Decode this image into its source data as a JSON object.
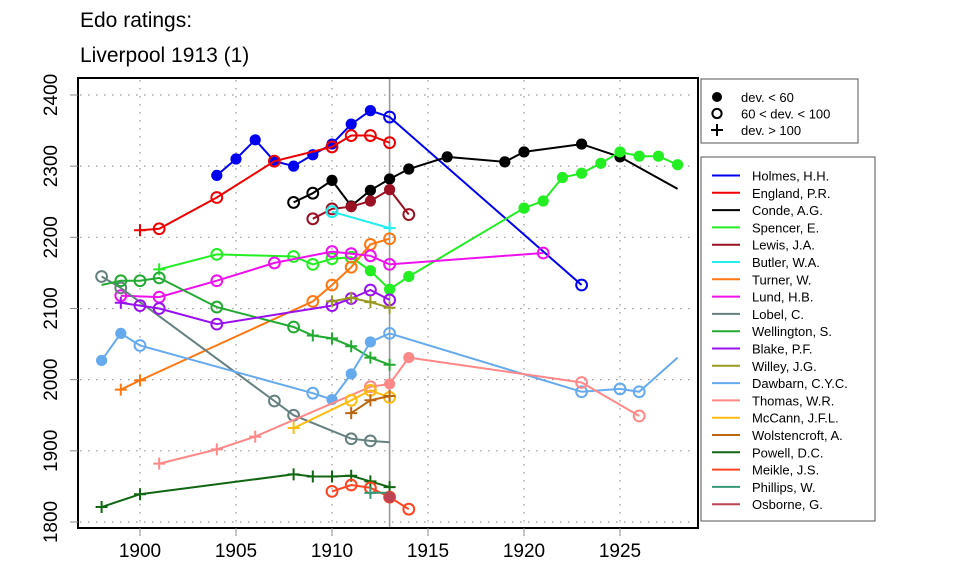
{
  "chart_data": {
    "type": "line",
    "title_line1": "Edo ratings:",
    "title_line2": "Liverpool 1913 (1)",
    "xlabel": "",
    "ylabel": "",
    "xlim": [
      1896.6,
      1929
    ],
    "ylim": [
      1792,
      2420
    ],
    "x_ticks": [
      1900,
      1905,
      1910,
      1915,
      1920,
      1925
    ],
    "x_tick_labels": [
      "1900",
      "1905",
      "1910",
      "1915",
      "1920",
      "1925"
    ],
    "y_ticks": [
      1800,
      1900,
      2000,
      2100,
      2200,
      2300,
      2400
    ],
    "y_tick_labels": [
      "1800",
      "1900",
      "2000",
      "2100",
      "2200",
      "2300",
      "2400"
    ],
    "grid": "dotted",
    "reference_line_x": 1913,
    "marker_legend": {
      "placement": "top-right-outside",
      "entries": [
        {
          "marker": "filled",
          "label": "dev. < 60"
        },
        {
          "marker": "open",
          "label": "60 < dev. < 100"
        },
        {
          "marker": "plus",
          "label": "dev. > 100"
        }
      ]
    },
    "series_legend_placement": "right-outside",
    "series": [
      {
        "name": "Holmes, H.H.",
        "color": "#0000EE",
        "points": [
          [
            1904,
            2287,
            "f"
          ],
          [
            1905,
            2310,
            "f"
          ],
          [
            1906,
            2337,
            "f"
          ],
          [
            1907,
            2307,
            "f"
          ],
          [
            1908,
            2300,
            "f"
          ],
          [
            1909,
            2316,
            "f"
          ],
          [
            1910,
            2331,
            "f"
          ],
          [
            1911,
            2359,
            "f"
          ],
          [
            1912,
            2378,
            "f"
          ],
          [
            1913,
            2369,
            "o"
          ],
          [
            1923,
            2133,
            "o"
          ]
        ]
      },
      {
        "name": "England, P.R.",
        "color": "#EE0000",
        "points": [
          [
            1900,
            2210,
            "p"
          ],
          [
            1901,
            2212,
            "o"
          ],
          [
            1904,
            2256,
            "o"
          ],
          [
            1907,
            2307,
            "o"
          ],
          [
            1910,
            2327,
            "o"
          ],
          [
            1911,
            2343,
            "o"
          ],
          [
            1912,
            2343,
            "o"
          ],
          [
            1913,
            2333,
            "o"
          ]
        ]
      },
      {
        "name": "Conde, A.G.",
        "color": "#000000",
        "points": [
          [
            1908,
            2249,
            "o"
          ],
          [
            1909,
            2262,
            "o"
          ],
          [
            1910,
            2280,
            "f"
          ],
          [
            1911,
            2244,
            "f"
          ],
          [
            1912,
            2266,
            "f"
          ],
          [
            1913,
            2282,
            "f"
          ],
          [
            1914,
            2296,
            "f"
          ],
          [
            1916,
            2313,
            "f"
          ],
          [
            1919,
            2306,
            "f"
          ],
          [
            1920,
            2320,
            "f"
          ],
          [
            1923,
            2331,
            "f"
          ],
          [
            1925,
            2313,
            "f"
          ],
          [
            1928,
            2268,
            "n"
          ]
        ]
      },
      {
        "name": "Spencer, E.",
        "color": "#22EE22",
        "points": [
          [
            1901,
            2155,
            "p"
          ],
          [
            1904,
            2176,
            "o"
          ],
          [
            1908,
            2173,
            "o"
          ],
          [
            1909,
            2162,
            "o"
          ],
          [
            1910,
            2170,
            "o"
          ],
          [
            1911,
            2172,
            "o"
          ],
          [
            1912,
            2153,
            "f"
          ],
          [
            1913,
            2127,
            "f"
          ],
          [
            1914,
            2145,
            "f"
          ],
          [
            1920,
            2241,
            "f"
          ],
          [
            1921,
            2251,
            "f"
          ],
          [
            1922,
            2284,
            "f"
          ],
          [
            1923,
            2290,
            "f"
          ],
          [
            1924,
            2304,
            "f"
          ],
          [
            1925,
            2320,
            "f"
          ],
          [
            1926,
            2314,
            "f"
          ],
          [
            1927,
            2314,
            "f"
          ],
          [
            1928,
            2302,
            "f"
          ]
        ]
      },
      {
        "name": "Lewis, J.A.",
        "color": "#991122",
        "points": [
          [
            1909,
            2226,
            "o"
          ],
          [
            1910,
            2240,
            "o"
          ],
          [
            1911,
            2243,
            "f"
          ],
          [
            1912,
            2251,
            "f"
          ],
          [
            1913,
            2267,
            "f"
          ],
          [
            1914,
            2232,
            "o"
          ]
        ]
      },
      {
        "name": "Butler, W.A.",
        "color": "#22EEEE",
        "points": [
          [
            1910,
            2236,
            "o"
          ],
          [
            1913,
            2213,
            "p"
          ]
        ]
      },
      {
        "name": "Turner, W.",
        "color": "#FF7711",
        "points": [
          [
            1899,
            1986,
            "p"
          ],
          [
            1900,
            1999,
            "p"
          ],
          [
            1909,
            2110,
            "o"
          ],
          [
            1910,
            2133,
            "o"
          ],
          [
            1911,
            2158,
            "o"
          ],
          [
            1912,
            2190,
            "o"
          ],
          [
            1913,
            2198,
            "o"
          ]
        ]
      },
      {
        "name": "Lund, H.B.",
        "color": "#EE11EE",
        "points": [
          [
            1899,
            2118,
            "o"
          ],
          [
            1901,
            2116,
            "o"
          ],
          [
            1904,
            2139,
            "o"
          ],
          [
            1907,
            2164,
            "o"
          ],
          [
            1910,
            2180,
            "o"
          ],
          [
            1911,
            2177,
            "o"
          ],
          [
            1912,
            2174,
            "o"
          ],
          [
            1913,
            2162,
            "o"
          ],
          [
            1921,
            2178,
            "o"
          ]
        ]
      },
      {
        "name": "Lobel, C.",
        "color": "#668080",
        "points": [
          [
            1898,
            2145,
            "o"
          ],
          [
            1899,
            2129,
            "o"
          ],
          [
            1907,
            1970,
            "o"
          ],
          [
            1908,
            1950,
            "o"
          ],
          [
            1911,
            1917,
            "o"
          ],
          [
            1912,
            1914,
            "o"
          ],
          [
            1913,
            1912,
            "n"
          ]
        ]
      },
      {
        "name": "Wellington, S.",
        "color": "#22AA33",
        "points": [
          [
            1898,
            2133,
            "n"
          ],
          [
            1899,
            2139,
            "o"
          ],
          [
            1900,
            2139,
            "o"
          ],
          [
            1901,
            2143,
            "o"
          ],
          [
            1904,
            2102,
            "o"
          ],
          [
            1908,
            2074,
            "o"
          ],
          [
            1909,
            2062,
            "p"
          ],
          [
            1910,
            2058,
            "p"
          ],
          [
            1911,
            2047,
            "p"
          ],
          [
            1912,
            2031,
            "p"
          ],
          [
            1913,
            2021,
            "p"
          ]
        ]
      },
      {
        "name": "Blake, P.F.",
        "color": "#9911EE",
        "points": [
          [
            1899,
            2108,
            "p"
          ],
          [
            1900,
            2104,
            "o"
          ],
          [
            1901,
            2100,
            "o"
          ],
          [
            1904,
            2078,
            "o"
          ],
          [
            1910,
            2104,
            "o"
          ],
          [
            1911,
            2114,
            "o"
          ],
          [
            1912,
            2126,
            "o"
          ],
          [
            1913,
            2112,
            "o"
          ]
        ]
      },
      {
        "name": "Willey, J.G.",
        "color": "#999922",
        "points": [
          [
            1910,
            2110,
            "p"
          ],
          [
            1911,
            2115,
            "p"
          ],
          [
            1912,
            2109,
            "p"
          ],
          [
            1913,
            2101,
            "p"
          ]
        ]
      },
      {
        "name": "Dawbarn, C.Y.C.",
        "color": "#66AAEE",
        "points": [
          [
            1898,
            2027,
            "f"
          ],
          [
            1899,
            2065,
            "f"
          ],
          [
            1900,
            2048,
            "o"
          ],
          [
            1909,
            1981,
            "o"
          ],
          [
            1910,
            1972,
            "f"
          ],
          [
            1911,
            2008,
            "f"
          ],
          [
            1912,
            2053,
            "f"
          ],
          [
            1913,
            2065,
            "o"
          ],
          [
            1923,
            1983,
            "o"
          ],
          [
            1925,
            1987,
            "o"
          ],
          [
            1926,
            1983,
            "o"
          ],
          [
            1928,
            2031,
            "n"
          ]
        ]
      },
      {
        "name": "Thomas, W.R.",
        "color": "#FF8888",
        "points": [
          [
            1901,
            1882,
            "p"
          ],
          [
            1904,
            1902,
            "p"
          ],
          [
            1906,
            1920,
            "p"
          ],
          [
            1912,
            1990,
            "o"
          ],
          [
            1913,
            1994,
            "f"
          ],
          [
            1914,
            2031,
            "f"
          ],
          [
            1923,
            1996,
            "o"
          ],
          [
            1926,
            1949,
            "o"
          ]
        ]
      },
      {
        "name": "McCann, J.F.L.",
        "color": "#FFBB11",
        "points": [
          [
            1908,
            1932,
            "p"
          ],
          [
            1911,
            1971,
            "o"
          ],
          [
            1912,
            1985,
            "o"
          ],
          [
            1913,
            1975,
            "o"
          ]
        ]
      },
      {
        "name": "Wolstencroft, A.",
        "color": "#BB6611",
        "points": [
          [
            1911,
            1953,
            "p"
          ],
          [
            1912,
            1971,
            "p"
          ],
          [
            1913,
            1977,
            "p"
          ]
        ]
      },
      {
        "name": "Powell, D.C.",
        "color": "#116611",
        "points": [
          [
            1898,
            1821,
            "p"
          ],
          [
            1900,
            1839,
            "p"
          ],
          [
            1908,
            1867,
            "p"
          ],
          [
            1909,
            1864,
            "p"
          ],
          [
            1910,
            1864,
            "p"
          ],
          [
            1911,
            1865,
            "p"
          ],
          [
            1912,
            1857,
            "p"
          ],
          [
            1913,
            1849,
            "p"
          ]
        ]
      },
      {
        "name": "Meikle, J.S.",
        "color": "#FF4422",
        "points": [
          [
            1910,
            1843,
            "o"
          ],
          [
            1911,
            1852,
            "o"
          ],
          [
            1912,
            1848,
            "o"
          ],
          [
            1913,
            1835,
            "o"
          ],
          [
            1914,
            1818,
            "o"
          ]
        ]
      },
      {
        "name": "Phillips, W.",
        "color": "#339977",
        "points": [
          [
            1912,
            1841,
            "p"
          ],
          [
            1913,
            1841,
            "n"
          ]
        ]
      },
      {
        "name": "Osborne, G.",
        "color": "#BB4455",
        "points": [
          [
            1913,
            1835,
            "f"
          ]
        ]
      }
    ]
  }
}
